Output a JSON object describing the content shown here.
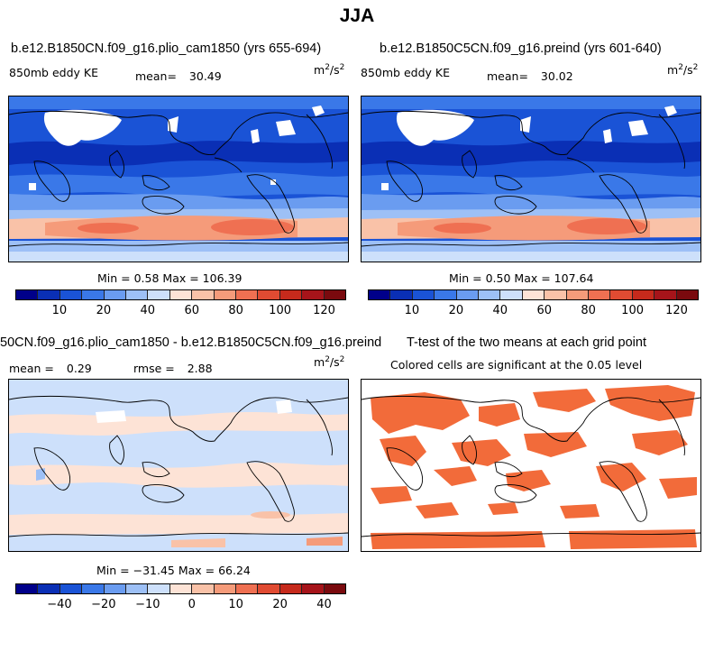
{
  "figure_title": "JJA",
  "panel_tl": {
    "title": "b.e12.B1850CN.f09_g16.plio_cam1850 (yrs 655-694)",
    "field": "850mb eddy KE",
    "mean_label": "mean=",
    "mean_value": "30.49",
    "units_base": "m",
    "units_exp1": "2",
    "units_sep": "/s",
    "units_exp2": "2",
    "minmax": "Min =   0.58 Max = 106.39"
  },
  "panel_tr": {
    "title": "b.e12.B1850C5CN.f09_g16.preind (yrs 601-640)",
    "field": "850mb eddy KE",
    "mean_label": "mean=",
    "mean_value": "30.02",
    "units_base": "m",
    "units_exp1": "2",
    "units_sep": "/s",
    "units_exp2": "2",
    "minmax": "Min =   0.50 Max = 107.64"
  },
  "panel_bl": {
    "title": "50CN.f09_g16.plio_cam1850 - b.e12.B1850C5CN.f09_g16.preind",
    "mean_label": "mean =",
    "mean_value": "0.29",
    "rmse_label": "rmse =",
    "rmse_value": "2.88",
    "units_base": "m",
    "units_exp1": "2",
    "units_sep": "/s",
    "units_exp2": "2",
    "minmax": "Min = −31.45 Max =  66.24"
  },
  "panel_br": {
    "title": "T-test of the two means at each grid point",
    "subtitle": "Colored cells are significant at the 0.05 level"
  },
  "colorbar_abs": {
    "ticks": [
      "10",
      "20",
      "40",
      "60",
      "80",
      "100",
      "120"
    ],
    "colors": [
      "#00008a",
      "#0a2fb5",
      "#1a53d6",
      "#3a78e8",
      "#6a9cf0",
      "#9dc0f6",
      "#cde0fb",
      "#fde3d6",
      "#f9c2a8",
      "#f59b7a",
      "#ef7052",
      "#e04b32",
      "#c62a1c",
      "#a6141a",
      "#7a0a0e"
    ]
  },
  "colorbar_diff": {
    "ticks": [
      "−40",
      "−20",
      "−10",
      "0",
      "10",
      "20",
      "40"
    ],
    "colors": [
      "#00008a",
      "#0a2fb5",
      "#1a53d6",
      "#3a78e8",
      "#6a9cf0",
      "#9dc0f6",
      "#cde0fb",
      "#fde3d6",
      "#f9c2a8",
      "#f59b7a",
      "#ef7052",
      "#e04b32",
      "#c62a1c",
      "#a6141a",
      "#7a0a0e"
    ]
  }
}
